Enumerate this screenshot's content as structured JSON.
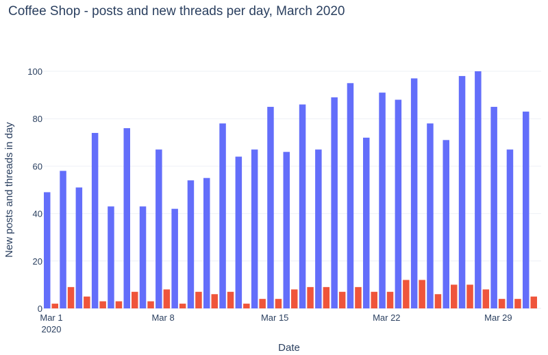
{
  "chart_data": {
    "type": "bar",
    "title": "Coffee Shop - posts and new threads per day, March 2020",
    "xlabel": "Date",
    "ylabel": "New posts and threads in day",
    "ylim": [
      0,
      100
    ],
    "yticks": [
      0,
      20,
      40,
      60,
      80,
      100
    ],
    "grid": true,
    "xticks": [
      {
        "day": 1,
        "label": "Mar 1",
        "sublabel": "2020"
      },
      {
        "day": 8,
        "label": "Mar 8"
      },
      {
        "day": 15,
        "label": "Mar 15"
      },
      {
        "day": 22,
        "label": "Mar 22"
      },
      {
        "day": 29,
        "label": "Mar 29"
      }
    ],
    "categories": [
      1,
      2,
      3,
      4,
      5,
      6,
      7,
      8,
      9,
      10,
      11,
      12,
      13,
      14,
      15,
      16,
      17,
      18,
      19,
      20,
      21,
      22,
      23,
      24,
      25,
      26,
      27,
      28,
      29,
      30,
      31
    ],
    "series": [
      {
        "name": "posts",
        "color": "#636efa",
        "values": [
          49,
          58,
          51,
          74,
          43,
          76,
          43,
          67,
          42,
          54,
          55,
          78,
          64,
          67,
          85,
          66,
          86,
          67,
          89,
          95,
          72,
          91,
          88,
          97,
          78,
          71,
          98,
          100,
          85,
          67,
          83
        ]
      },
      {
        "name": "threads",
        "color": "#ef553b",
        "values": [
          2,
          9,
          5,
          3,
          3,
          7,
          3,
          8,
          2,
          7,
          6,
          7,
          2,
          4,
          4,
          8,
          9,
          9,
          7,
          9,
          7,
          7,
          12,
          12,
          6,
          10,
          10,
          8,
          4,
          4,
          5
        ]
      }
    ]
  }
}
